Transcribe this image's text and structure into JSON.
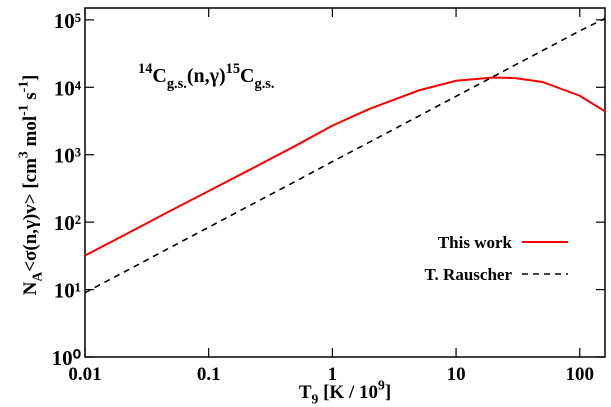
{
  "chart_data": {
    "type": "line",
    "annotation": [
      {
        "text": "14",
        "shift": "sup"
      },
      {
        "text": "C"
      },
      {
        "text": "g.s.",
        "shift": "sub"
      },
      {
        "text": "(n,γ)"
      },
      {
        "text": "15",
        "shift": "sup"
      },
      {
        "text": "C"
      },
      {
        "text": "g.s.",
        "shift": "sub"
      }
    ],
    "xlabel": [
      {
        "text": "T"
      },
      {
        "text": "9",
        "shift": "sub"
      },
      {
        "text": " [K / 10"
      },
      {
        "text": "9",
        "shift": "sup"
      },
      {
        "text": "]"
      }
    ],
    "ylabel": [
      {
        "text": "N"
      },
      {
        "text": "A",
        "shift": "sub"
      },
      {
        "text": "<σ(n,γ)v> [cm"
      },
      {
        "text": "3",
        "shift": "sup"
      },
      {
        "text": " mol"
      },
      {
        "text": "-1",
        "shift": "sup"
      },
      {
        "text": " s"
      },
      {
        "text": "-1",
        "shift": "sup"
      },
      {
        "text": "]"
      }
    ],
    "x": [
      0.01,
      0.02,
      0.05,
      0.1,
      0.2,
      0.5,
      1,
      2,
      5,
      10,
      20,
      30,
      50,
      100,
      160
    ],
    "series": [
      {
        "name": "This work",
        "color": "#ff0000",
        "dash": false,
        "values": [
          32,
          62,
          150,
          290,
          560,
          1350,
          2700,
          4800,
          9000,
          12500,
          14000,
          13700,
          12000,
          7500,
          4400
        ]
      },
      {
        "name": "T. Rauscher",
        "color": "#000000",
        "dash": true,
        "values": [
          9,
          17.6,
          43,
          84,
          165,
          400,
          790,
          1540,
          3750,
          7350,
          14400,
          21400,
          35000,
          68700,
          105000
        ]
      }
    ],
    "xscale": "log",
    "yscale": "log",
    "xlim": [
      0.01,
      160
    ],
    "ylim": [
      1,
      150000
    ],
    "xticks": [
      {
        "value": 0.01,
        "label": "0.01"
      },
      {
        "value": 0.1,
        "label": "0.1"
      },
      1,
      10,
      100
    ],
    "yticks": [
      {
        "value": 1,
        "label": "10⁰"
      },
      {
        "value": 10,
        "label": "10¹"
      },
      {
        "value": 100,
        "label": "10²"
      },
      {
        "value": 1000,
        "label": "10³"
      },
      {
        "value": 10000,
        "label": "10⁴"
      },
      {
        "value": 100000,
        "label": "10⁵"
      }
    ],
    "grid": false,
    "legend": "lower right"
  }
}
